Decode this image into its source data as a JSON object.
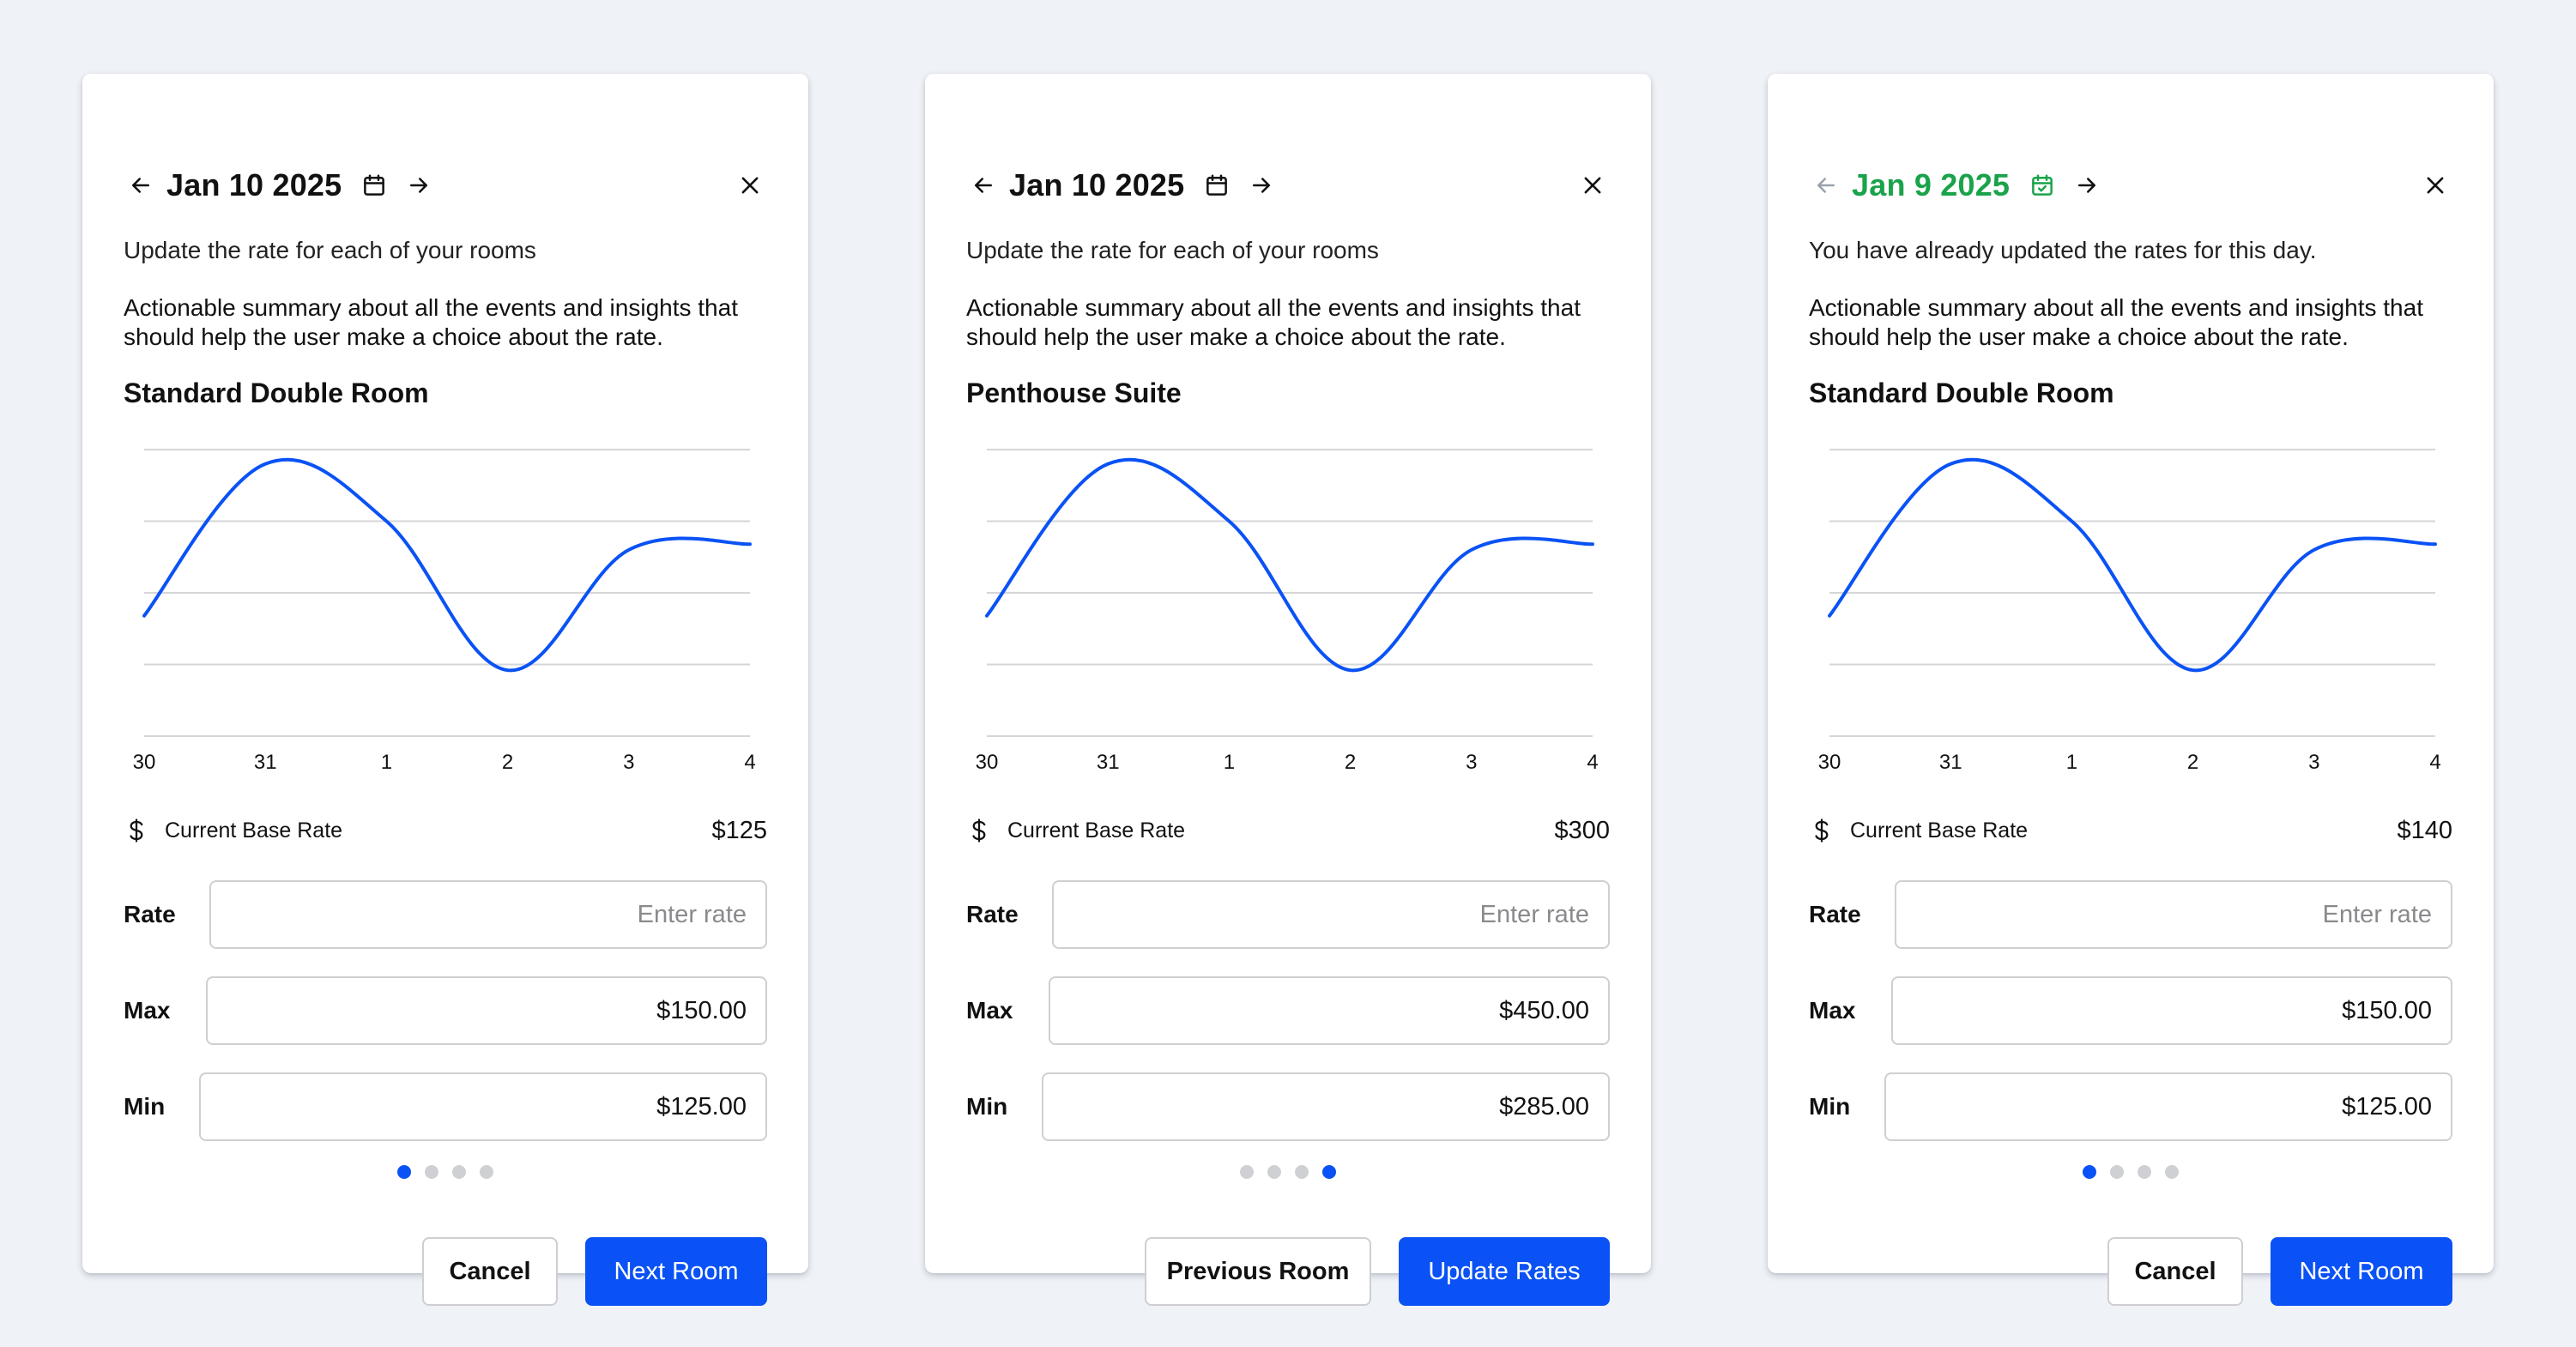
{
  "colors": {
    "accent": "#0a52f5",
    "success": "#1aa34a",
    "grid": "#d6d6d9",
    "text": "#111111",
    "muted_arrow": "#9aa3ad"
  },
  "panels": [
    {
      "date": "Jan 10 2025",
      "date_color": "#111111",
      "date_state": "default",
      "prev_disabled": false,
      "subtitle": "Update the rate for each of your rooms",
      "summary": "Actionable summary about all the events and insights that should help the user make a choice about the rate.",
      "room": "Standard Double Room",
      "chart_data": {
        "type": "line",
        "x": [
          "30",
          "31",
          "1",
          "2",
          "3",
          "4"
        ],
        "y": [
          0.42,
          0.95,
          0.75,
          0.23,
          0.65,
          0.67
        ],
        "ylim": [
          0,
          1
        ],
        "grid": true,
        "ylabel": "",
        "xlabel": ""
      },
      "base_rate_label": "Current Base Rate",
      "base_rate_value": "$125",
      "rate": {
        "label": "Rate",
        "value": "",
        "placeholder": "Enter rate"
      },
      "max": {
        "label": "Max",
        "value": "$150.00"
      },
      "min": {
        "label": "Min",
        "value": "$125.00"
      },
      "pagination": {
        "total": 4,
        "active": 0
      },
      "secondary_button": "Cancel",
      "primary_button": "Next Room"
    },
    {
      "date": "Jan 10 2025",
      "date_color": "#111111",
      "date_state": "default",
      "prev_disabled": false,
      "subtitle": "Update the rate for each of your rooms",
      "summary": "Actionable summary about all the events and insights that should help the user make a choice about the rate.",
      "room": "Penthouse Suite",
      "chart_data": {
        "type": "line",
        "x": [
          "30",
          "31",
          "1",
          "2",
          "3",
          "4"
        ],
        "y": [
          0.42,
          0.95,
          0.75,
          0.23,
          0.65,
          0.67
        ],
        "ylim": [
          0,
          1
        ],
        "grid": true,
        "ylabel": "",
        "xlabel": ""
      },
      "base_rate_label": "Current Base Rate",
      "base_rate_value": "$300",
      "rate": {
        "label": "Rate",
        "value": "",
        "placeholder": "Enter rate"
      },
      "max": {
        "label": "Max",
        "value": "$450.00"
      },
      "min": {
        "label": "Min",
        "value": "$285.00"
      },
      "pagination": {
        "total": 4,
        "active": 3
      },
      "secondary_button": "Previous Room",
      "primary_button": "Update Rates"
    },
    {
      "date": "Jan 9 2025",
      "date_color": "#1aa34a",
      "date_state": "completed",
      "prev_disabled": true,
      "subtitle": "You have already updated the rates for this day.",
      "summary": "Actionable summary about all the events and insights that should help the user make a choice about the rate.",
      "room": "Standard Double Room",
      "chart_data": {
        "type": "line",
        "x": [
          "30",
          "31",
          "1",
          "2",
          "3",
          "4"
        ],
        "y": [
          0.42,
          0.95,
          0.75,
          0.23,
          0.65,
          0.67
        ],
        "ylim": [
          0,
          1
        ],
        "grid": true,
        "ylabel": "",
        "xlabel": ""
      },
      "base_rate_label": "Current Base Rate",
      "base_rate_value": "$140",
      "rate": {
        "label": "Rate",
        "value": "",
        "placeholder": "Enter rate"
      },
      "max": {
        "label": "Max",
        "value": "$150.00"
      },
      "min": {
        "label": "Min",
        "value": "$125.00"
      },
      "pagination": {
        "total": 4,
        "active": 0
      },
      "secondary_button": "Cancel",
      "primary_button": "Next Room"
    }
  ]
}
